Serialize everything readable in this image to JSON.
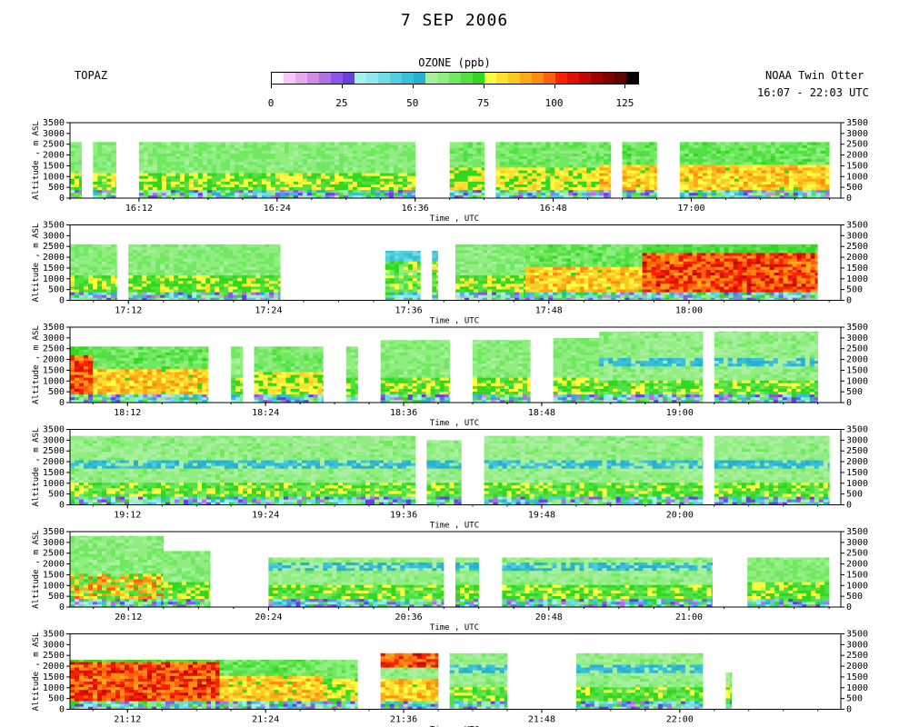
{
  "title": "7 SEP 2006",
  "site_label": "TOPAZ",
  "platform_label": "NOAA Twin Otter",
  "time_range_label": "16:07 - 22:03 UTC",
  "colorbar": {
    "label": "OZONE (ppb)",
    "tick_labels": [
      "0",
      "25",
      "50",
      "75",
      "100",
      "125"
    ],
    "tick_values": [
      0,
      25,
      50,
      75,
      100,
      125
    ],
    "range": [
      0,
      130
    ],
    "colors": [
      "#ffffff",
      "#f7c7f7",
      "#e8a8f0",
      "#d08ae8",
      "#b070e8",
      "#8a55e8",
      "#6a3fe0",
      "#a8f0f0",
      "#90e8f0",
      "#70dce8",
      "#50cfe0",
      "#38c0d8",
      "#28b0d0",
      "#a8f0a0",
      "#90ee80",
      "#70e860",
      "#50e040",
      "#30d820",
      "#ffff40",
      "#ffe030",
      "#ffc820",
      "#ffa818",
      "#ff8c10",
      "#ff6008",
      "#ff2000",
      "#e01000",
      "#c00800",
      "#a00000",
      "#800000",
      "#600000",
      "#000000"
    ]
  },
  "chart_data": {
    "type": "heatmap",
    "title": "7 SEP 2006",
    "variable": "OZONE (ppb)",
    "color_range": [
      0,
      130
    ],
    "panels": [
      {
        "ylabel": "Altitude , m  ASL",
        "xlabel": "Time , UTC",
        "ylim": [
          0,
          3500
        ],
        "yticks": [
          0,
          500,
          1000,
          1500,
          2000,
          2500,
          3000,
          3500
        ],
        "xlim": [
          "16:06",
          "17:13"
        ],
        "xtick_labels": [
          "16:12",
          "16:24",
          "16:36",
          "16:48",
          "17:00"
        ],
        "segments": [
          {
            "start": "16:06",
            "end": "16:07",
            "top": 2600,
            "profile": "mid"
          },
          {
            "start": "16:08",
            "end": "16:10",
            "top": 2600,
            "profile": "mid"
          },
          {
            "start": "16:12",
            "end": "16:36",
            "top": 2600,
            "profile": "mid"
          },
          {
            "start": "16:39",
            "end": "16:42",
            "top": 2600,
            "profile": "mid_high"
          },
          {
            "start": "16:43",
            "end": "16:52",
            "top": 2600,
            "profile": "mid_high"
          },
          {
            "start": "16:52",
            "end": "16:53",
            "top": 2600,
            "profile": "high"
          },
          {
            "start": "16:54",
            "end": "16:57",
            "top": 2600,
            "profile": "high"
          },
          {
            "start": "16:59",
            "end": "17:12",
            "top": 2600,
            "profile": "high"
          }
        ]
      },
      {
        "ylabel": "Altitude , m  ASL",
        "xlabel": "Time , UTC",
        "ylim": [
          0,
          3500
        ],
        "yticks": [
          0,
          500,
          1000,
          1500,
          2000,
          2500,
          3000,
          3500
        ],
        "xlim": [
          "17:07",
          "18:13"
        ],
        "xtick_labels": [
          "17:12",
          "17:24",
          "17:36",
          "17:48",
          "18:00"
        ],
        "segments": [
          {
            "start": "17:07",
            "end": "17:11",
            "top": 2600,
            "profile": "mid"
          },
          {
            "start": "17:12",
            "end": "17:25",
            "top": 2600,
            "profile": "mid"
          },
          {
            "start": "17:34",
            "end": "17:37",
            "top": 2300,
            "profile": "low"
          },
          {
            "start": "17:38",
            "end": "17:38.5",
            "top": 2300,
            "profile": "low"
          },
          {
            "start": "17:40",
            "end": "17:46",
            "top": 2600,
            "profile": "mid"
          },
          {
            "start": "17:46",
            "end": "17:51",
            "top": 2600,
            "profile": "high"
          },
          {
            "start": "17:51",
            "end": "17:56",
            "top": 2600,
            "profile": "high"
          },
          {
            "start": "17:56",
            "end": "18:11",
            "top": 2600,
            "profile": "very_high"
          }
        ]
      },
      {
        "ylabel": "Altitude , m  ASL",
        "xlabel": "Time , UTC",
        "ylim": [
          0,
          3500
        ],
        "yticks": [
          0,
          500,
          1000,
          1500,
          2000,
          2500,
          3000,
          3500
        ],
        "xlim": [
          "18:07",
          "19:14"
        ],
        "xtick_labels": [
          "18:12",
          "18:24",
          "18:36",
          "18:48",
          "19:00"
        ],
        "segments": [
          {
            "start": "18:07",
            "end": "18:09",
            "top": 2600,
            "profile": "very_high"
          },
          {
            "start": "18:09",
            "end": "18:19",
            "top": 2600,
            "profile": "high"
          },
          {
            "start": "18:21",
            "end": "18:22",
            "top": 2600,
            "profile": "mid"
          },
          {
            "start": "18:23",
            "end": "18:29",
            "top": 2600,
            "profile": "mid_high"
          },
          {
            "start": "18:31",
            "end": "18:32",
            "top": 2600,
            "profile": "mid"
          },
          {
            "start": "18:34",
            "end": "18:40",
            "top": 2900,
            "profile": "mid"
          },
          {
            "start": "18:42",
            "end": "18:47",
            "top": 2900,
            "profile": "mid"
          },
          {
            "start": "18:49",
            "end": "18:53",
            "top": 3000,
            "profile": "mid"
          },
          {
            "start": "18:53",
            "end": "19:02",
            "top": 3300,
            "profile": "upper"
          },
          {
            "start": "19:03",
            "end": "19:12",
            "top": 3300,
            "profile": "upper"
          }
        ]
      },
      {
        "ylabel": "Altitude , m  ASL",
        "xlabel": "Time , UTC",
        "ylim": [
          0,
          3500
        ],
        "yticks": [
          0,
          500,
          1000,
          1500,
          2000,
          2500,
          3000,
          3500
        ],
        "xlim": [
          "19:07",
          "20:14"
        ],
        "xtick_labels": [
          "19:12",
          "19:24",
          "19:36",
          "19:48",
          "20:00"
        ],
        "segments": [
          {
            "start": "19:07",
            "end": "19:37",
            "top": 3200,
            "profile": "upper"
          },
          {
            "start": "19:38",
            "end": "19:41",
            "top": 3000,
            "profile": "upper"
          },
          {
            "start": "19:43",
            "end": "20:02",
            "top": 3200,
            "profile": "upper"
          },
          {
            "start": "20:03",
            "end": "20:13",
            "top": 3200,
            "profile": "upper"
          }
        ]
      },
      {
        "ylabel": "Altitude , m  ASL",
        "xlabel": "Time , UTC",
        "ylim": [
          0,
          3500
        ],
        "yticks": [
          0,
          500,
          1000,
          1500,
          2000,
          2500,
          3000,
          3500
        ],
        "xlim": [
          "20:07",
          "21:13"
        ],
        "xtick_labels": [
          "20:12",
          "20:24",
          "20:36",
          "20:48",
          "21:00"
        ],
        "segments": [
          {
            "start": "20:07",
            "end": "20:15",
            "top": 3300,
            "profile": "mixed"
          },
          {
            "start": "20:15",
            "end": "20:19",
            "top": 2600,
            "profile": "mid"
          },
          {
            "start": "20:24",
            "end": "20:39",
            "top": 2300,
            "profile": "upper"
          },
          {
            "start": "20:40",
            "end": "20:42",
            "top": 2300,
            "profile": "upper"
          },
          {
            "start": "20:44",
            "end": "21:02",
            "top": 2300,
            "profile": "upper"
          },
          {
            "start": "21:05",
            "end": "21:12",
            "top": 2300,
            "profile": "mid"
          }
        ]
      },
      {
        "ylabel": "Altitude , m  ASL",
        "xlabel": "Time , UTC",
        "ylim": [
          0,
          3500
        ],
        "yticks": [
          0,
          500,
          1000,
          1500,
          2000,
          2500,
          3000,
          3500
        ],
        "xlim": [
          "21:07",
          "22:14"
        ],
        "xtick_labels": [
          "21:12",
          "21:24",
          "21:36",
          "21:48",
          "22:00"
        ],
        "segments": [
          {
            "start": "21:07",
            "end": "21:20",
            "top": 2300,
            "profile": "very_high"
          },
          {
            "start": "21:20",
            "end": "21:29",
            "top": 2300,
            "profile": "high"
          },
          {
            "start": "21:29",
            "end": "21:32",
            "top": 2300,
            "profile": "mid_high"
          },
          {
            "start": "21:34",
            "end": "21:39",
            "top": 2600,
            "profile": "layered"
          },
          {
            "start": "21:40",
            "end": "21:45",
            "top": 2600,
            "profile": "upper"
          },
          {
            "start": "21:51",
            "end": "22:02",
            "top": 2600,
            "profile": "upper"
          },
          {
            "start": "22:04",
            "end": "22:04.5",
            "top": 1700,
            "profile": "mid"
          }
        ]
      }
    ]
  }
}
